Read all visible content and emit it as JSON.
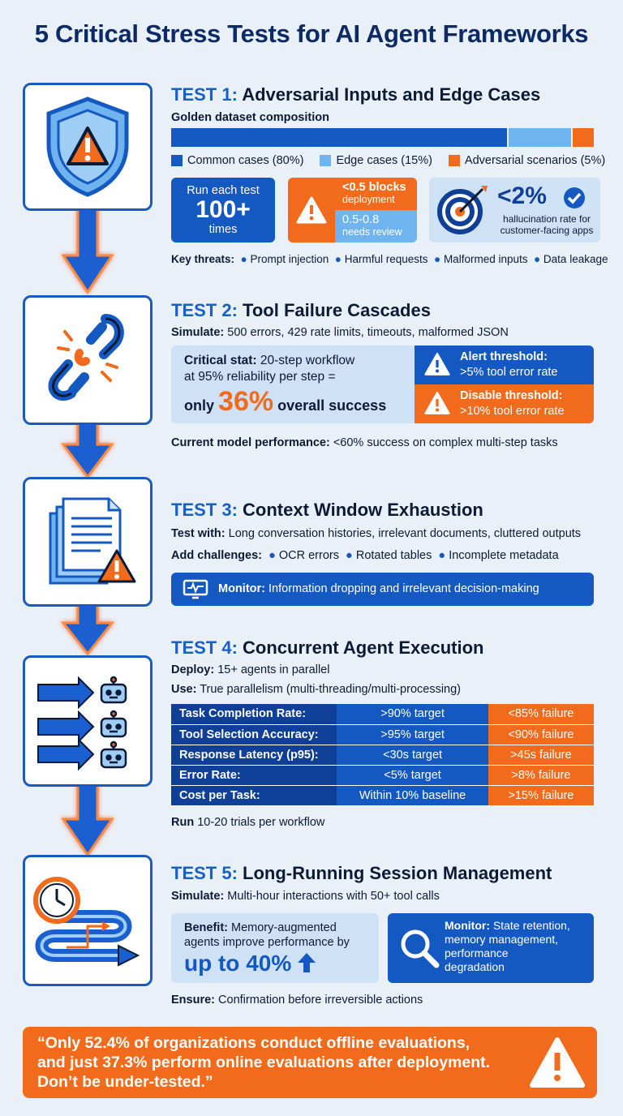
{
  "title": "5 Critical Stress Tests for AI Agent Frameworks",
  "test1": {
    "label": "TEST 1:",
    "heading": "Adversarial Inputs and Edge Cases",
    "subheading": "Golden dataset composition",
    "composition": [
      {
        "name": "Common cases (80%)",
        "percent": 80,
        "color": "#1459c2"
      },
      {
        "name": "Edge cases (15%)",
        "percent": 15,
        "color": "#6fb3ef"
      },
      {
        "name": "Adversarial scenarios (5%)",
        "percent": 5,
        "color": "#f26a1b"
      }
    ],
    "run_line1": "Run each test",
    "run_big": "100+",
    "run_line2": "times",
    "block_main": "<0.5 blocks",
    "block_sub": "deployment",
    "review_main": "0.5-0.8",
    "review_sub": "needs review",
    "halluc_big": "<2%",
    "halluc_sub": "hallucination rate for customer-facing apps",
    "threats_label": "Key threats:",
    "threats": [
      "Prompt injection",
      "Harmful requests",
      "Malformed inputs",
      "Data leakage"
    ]
  },
  "test2": {
    "label": "TEST 2:",
    "heading": "Tool Failure Cascades",
    "simulate_label": "Simulate:",
    "simulate": "500 errors, 429 rate limits, timeouts, malformed JSON",
    "stat_label": "Critical stat:",
    "stat_line1": "20-step workflow",
    "stat_line2": "at 95% reliability per step =",
    "stat_only": "only",
    "stat_big": "36%",
    "stat_end": "overall success",
    "alert_title": "Alert threshold:",
    "alert_value": ">5% tool error rate",
    "disable_title": "Disable threshold:",
    "disable_value": ">10% tool error rate",
    "perf_label": "Current model performance:",
    "perf": "<60% success on complex multi-step tasks"
  },
  "test3": {
    "label": "TEST 3:",
    "heading": "Context Window Exhaustion",
    "testwith_label": "Test with:",
    "testwith": "Long conversation histories, irrelevant documents, cluttered outputs",
    "add_label": "Add challenges:",
    "challenges": [
      "OCR errors",
      "Rotated tables",
      "Incomplete metadata"
    ],
    "monitor_label": "Monitor:",
    "monitor": "Information dropping and irrelevant decision-making"
  },
  "test4": {
    "label": "TEST 4:",
    "heading": "Concurrent Agent Execution",
    "deploy_label": "Deploy:",
    "deploy": "15+ agents in parallel",
    "use_label": "Use:",
    "use": "True parallelism (multi-threading/multi-processing)",
    "metrics": [
      {
        "name": "Task Completion Rate:",
        "target": ">90% target",
        "failure": "<85% failure"
      },
      {
        "name": "Tool Selection Accuracy:",
        "target": ">95% target",
        "failure": "<90% failure"
      },
      {
        "name": "Response Latency (p95):",
        "target": "<30s target",
        "failure": ">45s failure"
      },
      {
        "name": "Error Rate:",
        "target": "<5% target",
        "failure": ">8% failure"
      },
      {
        "name": "Cost per Task:",
        "target": "Within 10% baseline",
        "failure": ">15% failure"
      }
    ],
    "run_label": "Run",
    "run": "10-20 trials per workflow"
  },
  "test5": {
    "label": "TEST 5:",
    "heading": "Long-Running Session Management",
    "simulate_label": "Simulate:",
    "simulate": "Multi-hour interactions with 50+ tool calls",
    "benefit_label": "Benefit:",
    "benefit_line1": "Memory-augmented",
    "benefit_line2": "agents improve performance by",
    "benefit_big": "up to 40%",
    "monitor_label": "Monitor:",
    "monitor_line1": "State retention,",
    "monitor_line2": "memory management,",
    "monitor_line3": "performance",
    "monitor_line4": "degradation",
    "ensure_label": "Ensure:",
    "ensure": "Confirmation before irreversible actions"
  },
  "quote": {
    "line1": "“Only 52.4% of organizations conduct offline evaluations,",
    "line2": "and just 37.3% perform online evaluations after deployment.",
    "line3": "Don’t be under-tested.”"
  },
  "colors": {
    "primary": "#1459c2",
    "accent": "#f26a1b",
    "light": "#cfe1f5"
  }
}
